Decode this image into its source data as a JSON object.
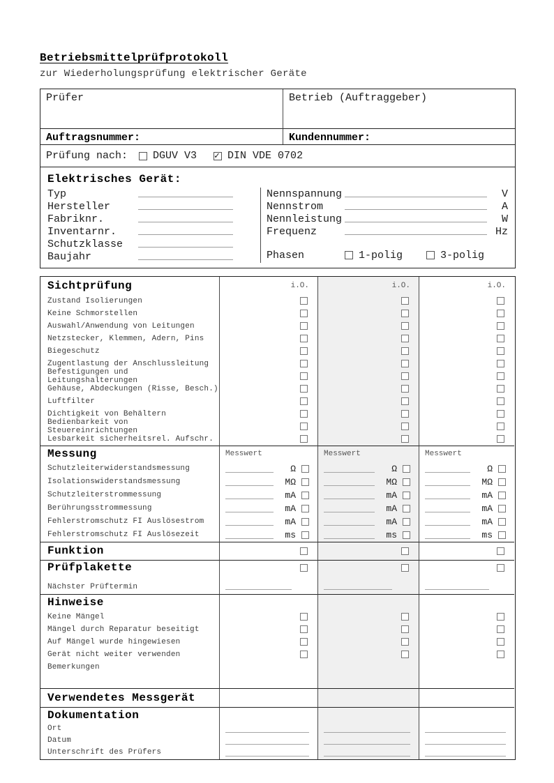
{
  "page": {
    "title": "Betriebsmittelprüfprotokoll",
    "subtitle": "zur Wiederholungsprüfung elektrischer Geräte"
  },
  "header": {
    "pruefer_label": "Prüfer",
    "betrieb_label": "Betrieb (Auftraggeber)",
    "auftragsnummer_label": "Auftragsnummer:",
    "kundennummer_label": "Kundennummer:",
    "pruefung_nach_label": "Prüfung nach:",
    "pruefung_optionen": [
      {
        "label": "DGUV V3",
        "checked": false
      },
      {
        "label": "DIN VDE 0702",
        "checked": true
      }
    ]
  },
  "geraet": {
    "heading": "Elektrisches Gerät:",
    "felder_links": [
      "Typ",
      "Hersteller",
      "Fabriknr.",
      "Inventarnr.",
      "Schutzklasse",
      "Baujahr"
    ],
    "felder_rechts": [
      {
        "label": "Nennspannung",
        "unit": "V"
      },
      {
        "label": "Nennstrom",
        "unit": "A"
      },
      {
        "label": "Nennleistung",
        "unit": "W"
      },
      {
        "label": "Frequenz",
        "unit": "Hz"
      }
    ],
    "phasen_label": "Phasen",
    "phasen_optionen": [
      {
        "label": "1-polig",
        "checked": false
      },
      {
        "label": "3-polig",
        "checked": false
      }
    ]
  },
  "pruefung": {
    "io_label": "i.O.",
    "sichtpruefung": {
      "heading": "Sichtprüfung",
      "items": [
        "Zustand Isolierungen",
        "Keine Schmorstellen",
        "Auswahl/Anwendung von Leitungen",
        "Netzstecker, Klemmen, Adern, Pins",
        "Biegeschutz",
        "Zugentlastung der Anschlussleitung",
        "Befestigungen und Leitungshalterungen",
        "Gehäuse, Abdeckungen (Risse, Besch.)",
        "Luftfilter",
        "Dichtigkeit von Behältern",
        "Bedienbarkeit von Steuereinrichtungen",
        "Lesbarkeit sicherheitsrel. Aufschr."
      ]
    },
    "messung": {
      "heading": "Messung",
      "messwert_label": "Messwert",
      "items": [
        {
          "label": "Schutzleiterwiderstandsmessung",
          "unit": "Ω"
        },
        {
          "label": "Isolationswiderstandsmessung",
          "unit": "MΩ"
        },
        {
          "label": "Schutzleiterstrommessung",
          "unit": "mA"
        },
        {
          "label": "Berührungsstrommessung",
          "unit": "mA"
        },
        {
          "label": "Fehlerstromschutz FI Auslösestrom",
          "unit": "mA"
        },
        {
          "label": "Fehlerstromschutz FI Auslösezeit",
          "unit": "ms"
        }
      ]
    },
    "funktion_heading": "Funktion",
    "pruefplakette": {
      "heading": "Prüfplakette",
      "naechster_prueftermin_label": "Nächster Prüftermin"
    },
    "hinweise": {
      "heading": "Hinweise",
      "items": [
        "Keine Mängel",
        "Mängel durch Reparatur beseitigt",
        "Auf Mängel wurde hingewiesen",
        "Gerät nicht weiter verwenden"
      ],
      "bemerkungen_label": "Bemerkungen"
    },
    "messgeraet_heading": "Verwendetes Messgerät",
    "dokumentation": {
      "heading": "Dokumentation",
      "items": [
        "Ort",
        "Datum",
        "Unterschrift des Prüfers"
      ]
    }
  },
  "colors": {
    "shaded_column": "#f0f0f0",
    "border_dark": "#222222",
    "underline": "#a5a5a5"
  }
}
